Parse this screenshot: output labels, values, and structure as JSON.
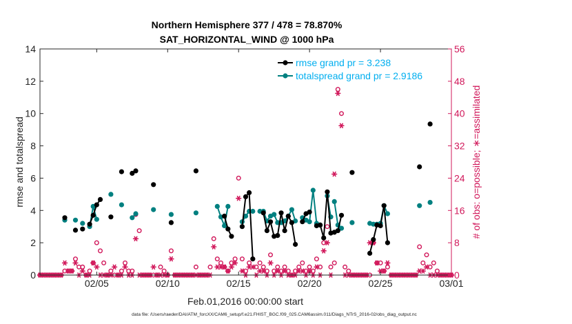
{
  "chart_data": {
    "type": "line",
    "title_line1": "Northern Hemisphere 377 / 478 = 78.870%",
    "title_line2": "SAT_HORIZONTAL_WIND @ 1000 hPa",
    "xlabel": "Feb.01,2016 00:00:00 start",
    "ylabel_left": "rmse and totalspread",
    "ylabel_right": "# of obs: o=possible; ∗=assimilated",
    "footer": "data file: /Users/raeder/DAI/ATM_forcXX/CAM6_setup/f.e21.FHIST_BGC.f09_025.CAM6assim.011/Diags_NTrS_2016-02/obs_diag_output.nc",
    "xlim": [
      1,
      30
    ],
    "xticks": [
      5,
      10,
      15,
      20,
      25,
      30
    ],
    "xticklabels": [
      "02/05",
      "02/10",
      "02/15",
      "02/20",
      "02/25",
      "03/01"
    ],
    "ylim_left": [
      0,
      14
    ],
    "yticks_left": [
      0,
      2,
      4,
      6,
      8,
      10,
      12,
      14
    ],
    "ylim_right": [
      0,
      56
    ],
    "yticks_right": [
      0,
      8,
      16,
      24,
      32,
      40,
      48,
      56
    ],
    "grid": false,
    "legend_position": "top-right",
    "colors": {
      "rmse": "#000000",
      "spread": "#008080",
      "obs": "#d1175a",
      "right_axis": "#d1175a",
      "legend_text": "#00aeef"
    },
    "series": [
      {
        "name": "rmse grand pr = 3.238",
        "segments": [
          [
            [
              2.75,
              3.55
            ]
          ],
          [
            [
              3.5,
              2.78
            ]
          ],
          [
            [
              4.0,
              2.85
            ]
          ],
          [
            [
              4.5,
              3.15
            ],
            [
              4.75,
              3.7
            ],
            [
              5.0,
              4.35
            ],
            [
              5.25,
              4.68
            ]
          ],
          [
            [
              6.0,
              3.6
            ]
          ],
          [
            [
              6.75,
              6.4
            ]
          ],
          [
            [
              7.5,
              6.3
            ],
            [
              7.75,
              6.45
            ]
          ],
          [
            [
              9.0,
              5.6
            ]
          ],
          [
            [
              10.25,
              3.25
            ]
          ],
          [
            [
              12.0,
              6.45
            ]
          ],
          [
            [
              14.0,
              3.65
            ],
            [
              14.25,
              2.85
            ],
            [
              14.5,
              2.4
            ]
          ],
          [
            [
              15.25,
              3.0
            ],
            [
              15.5,
              4.85
            ],
            [
              15.75,
              5.1
            ],
            [
              16.0,
              1.0
            ]
          ],
          [
            [
              16.75,
              3.85
            ],
            [
              17.0,
              2.75
            ],
            [
              17.25,
              3.3
            ],
            [
              17.5,
              2.4
            ],
            [
              17.75,
              2.45
            ],
            [
              18.0,
              3.85
            ],
            [
              18.25,
              2.75
            ],
            [
              18.5,
              3.65
            ],
            [
              18.75,
              3.25
            ],
            [
              19.0,
              1.9
            ]
          ],
          [
            [
              19.5,
              3.3
            ],
            [
              19.75,
              3.8
            ],
            [
              20.0,
              3.9
            ]
          ],
          [
            [
              20.5,
              3.05
            ],
            [
              20.75,
              3.1
            ],
            [
              21.0,
              2.3
            ],
            [
              21.25,
              5.15
            ],
            [
              21.5,
              2.6
            ]
          ],
          [
            [
              21.75,
              2.65
            ],
            [
              22.0,
              2.75
            ],
            [
              22.25,
              3.7
            ]
          ],
          [
            [
              23.0,
              6.35
            ]
          ],
          [
            [
              24.25,
              1.35
            ],
            [
              24.5,
              2.2
            ],
            [
              24.75,
              3.1
            ],
            [
              25.0,
              3.05
            ],
            [
              25.25,
              4.3
            ],
            [
              25.5,
              2.0
            ]
          ],
          [
            [
              27.75,
              6.7
            ]
          ],
          [
            [
              28.5,
              9.35
            ]
          ]
        ]
      },
      {
        "name": "totalspread grand pr = 2.9186",
        "segments": [
          [
            [
              2.75,
              3.4
            ]
          ],
          [
            [
              3.5,
              3.4
            ]
          ],
          [
            [
              4.0,
              3.2
            ]
          ],
          [
            [
              4.5,
              3.0
            ],
            [
              4.75,
              4.25
            ],
            [
              5.0,
              3.45
            ]
          ],
          [
            [
              6.0,
              5.0
            ]
          ],
          [
            [
              6.75,
              4.35
            ]
          ],
          [
            [
              7.5,
              3.55
            ],
            [
              7.75,
              3.8
            ]
          ],
          [
            [
              9.0,
              4.05
            ]
          ],
          [
            [
              10.25,
              3.75
            ]
          ],
          [
            [
              12.0,
              3.85
            ]
          ],
          [
            [
              13.5,
              4.25
            ],
            [
              13.75,
              3.6
            ],
            [
              14.0,
              3.05
            ],
            [
              14.25,
              4.25
            ]
          ],
          [
            [
              15.25,
              3.3
            ],
            [
              15.5,
              3.65
            ],
            [
              15.75,
              3.95
            ],
            [
              16.0,
              3.95
            ]
          ],
          [
            [
              16.5,
              3.95
            ],
            [
              16.75,
              3.95
            ],
            [
              17.0,
              3.35
            ],
            [
              17.25,
              3.65
            ],
            [
              17.5,
              3.75
            ],
            [
              17.75,
              3.25
            ],
            [
              18.0,
              3.25
            ],
            [
              18.25,
              3.35
            ],
            [
              18.5,
              3.65
            ],
            [
              18.75,
              4.05
            ],
            [
              19.0,
              3.35
            ]
          ],
          [
            [
              19.5,
              3.55
            ],
            [
              19.75,
              3.4
            ],
            [
              20.0,
              3.3
            ],
            [
              20.25,
              5.25
            ],
            [
              20.5,
              3.2
            ],
            [
              20.75,
              3.1
            ]
          ],
          [
            [
              21.25,
              4.9
            ],
            [
              21.5,
              3.6
            ]
          ],
          [
            [
              21.75,
              4.55
            ],
            [
              22.0,
              3.1
            ],
            [
              22.25,
              2.9
            ]
          ],
          [
            [
              23.0,
              3.25
            ]
          ],
          [
            [
              24.25,
              3.2
            ],
            [
              24.5,
              3.15
            ],
            [
              24.75,
              3.15
            ],
            [
              25.0,
              3.2
            ],
            [
              25.25,
              4.3
            ],
            [
              25.5,
              3.8
            ]
          ],
          [
            [
              27.75,
              4.3
            ]
          ],
          [
            [
              28.5,
              4.5
            ]
          ]
        ]
      }
    ],
    "obs_possible": [
      [
        1.0,
        0
      ],
      [
        1.25,
        0
      ],
      [
        1.5,
        0
      ],
      [
        1.75,
        0
      ],
      [
        2.0,
        0
      ],
      [
        2.25,
        0
      ],
      [
        2.5,
        0
      ],
      [
        2.75,
        1
      ],
      [
        3.0,
        1
      ],
      [
        3.25,
        1
      ],
      [
        3.5,
        4
      ],
      [
        3.75,
        2
      ],
      [
        4.0,
        2
      ],
      [
        4.25,
        0
      ],
      [
        4.5,
        1
      ],
      [
        4.75,
        3
      ],
      [
        5.0,
        8
      ],
      [
        5.25,
        6
      ],
      [
        5.5,
        3
      ],
      [
        5.75,
        0
      ],
      [
        6.0,
        1
      ],
      [
        6.25,
        0
      ],
      [
        6.5,
        0
      ],
      [
        6.75,
        1
      ],
      [
        7.0,
        3
      ],
      [
        7.25,
        1
      ],
      [
        7.5,
        1
      ],
      [
        7.75,
        15
      ],
      [
        8.0,
        11
      ],
      [
        8.25,
        0
      ],
      [
        8.5,
        0
      ],
      [
        8.75,
        0
      ],
      [
        9.0,
        0
      ],
      [
        9.25,
        0
      ],
      [
        9.5,
        2
      ],
      [
        9.75,
        1
      ],
      [
        10.0,
        0
      ],
      [
        10.25,
        6
      ],
      [
        10.5,
        0
      ],
      [
        10.75,
        0
      ],
      [
        11.0,
        0
      ],
      [
        11.25,
        0
      ],
      [
        11.5,
        0
      ],
      [
        11.75,
        0
      ],
      [
        12.0,
        2
      ],
      [
        12.25,
        0
      ],
      [
        12.5,
        0
      ],
      [
        12.75,
        0
      ],
      [
        13.0,
        2
      ],
      [
        13.25,
        9
      ],
      [
        13.5,
        4
      ],
      [
        13.75,
        3
      ],
      [
        14.0,
        2
      ],
      [
        14.25,
        1
      ],
      [
        14.5,
        3
      ],
      [
        14.75,
        4
      ],
      [
        15.0,
        24
      ],
      [
        15.25,
        4
      ],
      [
        15.5,
        1
      ],
      [
        15.75,
        3
      ],
      [
        16.0,
        4
      ],
      [
        16.25,
        2
      ],
      [
        16.5,
        3
      ],
      [
        16.75,
        2
      ],
      [
        17.0,
        1
      ],
      [
        17.25,
        5
      ],
      [
        17.5,
        1
      ],
      [
        17.75,
        2
      ],
      [
        18.0,
        1
      ],
      [
        18.25,
        2
      ],
      [
        18.5,
        1
      ],
      [
        18.75,
        0
      ],
      [
        19.0,
        1
      ],
      [
        19.25,
        2
      ],
      [
        19.5,
        3
      ],
      [
        19.75,
        1
      ],
      [
        20.0,
        2
      ],
      [
        20.25,
        1
      ],
      [
        20.5,
        4
      ],
      [
        20.75,
        2
      ],
      [
        21.0,
        8
      ],
      [
        21.25,
        12
      ],
      [
        21.5,
        2
      ],
      [
        21.75,
        3
      ],
      [
        22.0,
        46
      ],
      [
        22.25,
        40
      ],
      [
        22.5,
        2
      ],
      [
        22.75,
        1
      ],
      [
        23.0,
        0
      ],
      [
        23.25,
        0
      ],
      [
        23.5,
        0
      ],
      [
        23.75,
        0
      ],
      [
        24.0,
        0
      ],
      [
        24.25,
        0
      ],
      [
        24.5,
        8
      ],
      [
        24.75,
        3
      ],
      [
        25.0,
        3
      ],
      [
        25.25,
        1
      ],
      [
        25.5,
        2
      ],
      [
        25.75,
        0
      ],
      [
        26.0,
        0
      ],
      [
        26.25,
        0
      ],
      [
        26.5,
        0
      ],
      [
        26.75,
        0
      ],
      [
        27.0,
        0
      ],
      [
        27.25,
        0
      ],
      [
        27.5,
        0
      ],
      [
        27.75,
        7
      ],
      [
        28.0,
        3
      ],
      [
        28.25,
        5
      ],
      [
        28.5,
        2
      ],
      [
        28.75,
        3
      ],
      [
        29.0,
        1
      ],
      [
        29.25,
        0
      ],
      [
        29.5,
        0
      ],
      [
        29.75,
        0
      ],
      [
        30.0,
        0
      ]
    ],
    "obs_assimilated": [
      [
        1.0,
        0
      ],
      [
        1.25,
        0
      ],
      [
        1.5,
        0
      ],
      [
        1.75,
        0
      ],
      [
        2.0,
        0
      ],
      [
        2.25,
        0
      ],
      [
        2.5,
        0
      ],
      [
        2.75,
        3
      ],
      [
        3.0,
        1
      ],
      [
        3.25,
        1
      ],
      [
        3.5,
        3
      ],
      [
        3.75,
        0
      ],
      [
        4.0,
        1
      ],
      [
        4.25,
        0
      ],
      [
        4.5,
        0
      ],
      [
        4.75,
        3
      ],
      [
        5.0,
        2
      ],
      [
        5.25,
        0
      ],
      [
        5.5,
        0
      ],
      [
        5.75,
        0
      ],
      [
        6.0,
        0
      ],
      [
        6.25,
        2
      ],
      [
        6.5,
        0
      ],
      [
        6.75,
        0
      ],
      [
        7.0,
        2
      ],
      [
        7.25,
        0
      ],
      [
        7.5,
        0
      ],
      [
        7.75,
        9
      ],
      [
        8.0,
        0
      ],
      [
        8.25,
        0
      ],
      [
        8.5,
        0
      ],
      [
        8.75,
        0
      ],
      [
        9.0,
        2
      ],
      [
        9.25,
        0
      ],
      [
        9.5,
        0
      ],
      [
        9.75,
        0
      ],
      [
        10.0,
        0
      ],
      [
        10.25,
        4
      ],
      [
        10.5,
        0
      ],
      [
        10.75,
        0
      ],
      [
        11.0,
        0
      ],
      [
        11.25,
        0
      ],
      [
        11.5,
        0
      ],
      [
        11.75,
        0
      ],
      [
        12.0,
        0
      ],
      [
        12.25,
        0
      ],
      [
        12.5,
        0
      ],
      [
        12.75,
        0
      ],
      [
        13.0,
        0
      ],
      [
        13.25,
        7
      ],
      [
        13.5,
        2
      ],
      [
        13.75,
        2
      ],
      [
        14.0,
        2
      ],
      [
        14.25,
        1
      ],
      [
        14.5,
        2
      ],
      [
        14.75,
        3
      ],
      [
        15.0,
        19
      ],
      [
        15.25,
        1
      ],
      [
        15.5,
        0
      ],
      [
        15.75,
        2
      ],
      [
        16.0,
        2
      ],
      [
        16.25,
        0
      ],
      [
        16.5,
        1
      ],
      [
        16.75,
        1
      ],
      [
        17.0,
        0
      ],
      [
        17.25,
        3
      ],
      [
        17.5,
        0
      ],
      [
        17.75,
        1
      ],
      [
        18.0,
        0
      ],
      [
        18.25,
        1
      ],
      [
        18.5,
        0
      ],
      [
        18.75,
        0
      ],
      [
        19.0,
        0
      ],
      [
        19.25,
        1
      ],
      [
        19.5,
        1
      ],
      [
        19.75,
        0
      ],
      [
        20.0,
        1
      ],
      [
        20.25,
        0
      ],
      [
        20.5,
        2
      ],
      [
        20.75,
        0
      ],
      [
        21.0,
        6
      ],
      [
        21.25,
        8
      ],
      [
        21.5,
        0
      ],
      [
        21.75,
        25
      ],
      [
        22.0,
        45
      ],
      [
        22.25,
        37
      ],
      [
        22.5,
        0
      ],
      [
        22.75,
        0
      ],
      [
        23.0,
        0
      ],
      [
        23.25,
        0
      ],
      [
        23.5,
        0
      ],
      [
        23.75,
        0
      ],
      [
        24.0,
        0
      ],
      [
        24.25,
        8
      ],
      [
        24.5,
        8
      ],
      [
        24.75,
        3
      ],
      [
        25.0,
        1
      ],
      [
        25.25,
        1
      ],
      [
        25.5,
        3
      ],
      [
        25.75,
        0
      ],
      [
        26.0,
        0
      ],
      [
        26.25,
        0
      ],
      [
        26.5,
        0
      ],
      [
        26.75,
        0
      ],
      [
        27.0,
        0
      ],
      [
        27.25,
        0
      ],
      [
        27.5,
        0
      ],
      [
        27.75,
        1
      ],
      [
        28.0,
        1
      ],
      [
        28.25,
        2
      ],
      [
        28.5,
        0
      ],
      [
        28.75,
        0
      ],
      [
        29.0,
        0
      ],
      [
        29.25,
        0
      ],
      [
        29.5,
        0
      ],
      [
        29.75,
        0
      ],
      [
        30.0,
        0
      ]
    ]
  }
}
